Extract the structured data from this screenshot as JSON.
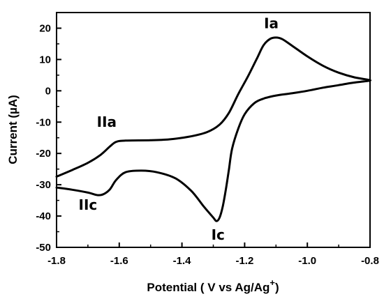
{
  "chart_data": {
    "type": "line",
    "title": "",
    "xlabel": "Potential ( V vs Ag/Ag",
    "xlabel_sup": "+",
    "xlabel_close": ")",
    "ylabel": "Current (µA)",
    "xlim": [
      -1.8,
      -0.8
    ],
    "ylim": [
      -50,
      25
    ],
    "xticks": [
      -1.8,
      -1.6,
      -1.4,
      -1.2,
      -1.0,
      -0.8
    ],
    "xtick_labels": [
      "-1.8",
      "-1.6",
      "-1.4",
      "-1.2",
      "-1.0",
      "-0.8"
    ],
    "yticks": [
      -50,
      -40,
      -30,
      -20,
      -10,
      0,
      10,
      20
    ],
    "ytick_labels": [
      "-50",
      "-40",
      "-30",
      "-20",
      "-10",
      "0",
      "10",
      "20"
    ],
    "grid": false,
    "line_color": "#000000",
    "series": [
      {
        "name": "",
        "points": [
          [
            -1.8,
            -27.4
          ],
          [
            -1.75,
            -25.3
          ],
          [
            -1.7,
            -23.0
          ],
          [
            -1.66,
            -20.5
          ],
          [
            -1.63,
            -17.8
          ],
          [
            -1.61,
            -16.3
          ],
          [
            -1.58,
            -15.9
          ],
          [
            -1.5,
            -15.8
          ],
          [
            -1.44,
            -15.5
          ],
          [
            -1.38,
            -14.7
          ],
          [
            -1.32,
            -13.2
          ],
          [
            -1.28,
            -10.8
          ],
          [
            -1.25,
            -7.0
          ],
          [
            -1.22,
            -1.0
          ],
          [
            -1.19,
            4.5
          ],
          [
            -1.16,
            10.5
          ],
          [
            -1.14,
            14.5
          ],
          [
            -1.12,
            16.5
          ],
          [
            -1.1,
            17.0
          ],
          [
            -1.08,
            16.5
          ],
          [
            -1.05,
            14.5
          ],
          [
            -1.0,
            11.0
          ],
          [
            -0.95,
            8.0
          ],
          [
            -0.9,
            5.8
          ],
          [
            -0.85,
            4.3
          ],
          [
            -0.8,
            3.4
          ],
          [
            -0.82,
            3.0
          ],
          [
            -0.86,
            2.5
          ],
          [
            -0.9,
            1.8
          ],
          [
            -0.95,
            1.0
          ],
          [
            -1.0,
            0.0
          ],
          [
            -1.05,
            -0.8
          ],
          [
            -1.1,
            -1.5
          ],
          [
            -1.14,
            -2.5
          ],
          [
            -1.17,
            -4.0
          ],
          [
            -1.2,
            -7.5
          ],
          [
            -1.22,
            -12.0
          ],
          [
            -1.24,
            -18.5
          ],
          [
            -1.25,
            -25.0
          ],
          [
            -1.26,
            -31.5
          ],
          [
            -1.27,
            -37.0
          ],
          [
            -1.28,
            -40.5
          ],
          [
            -1.29,
            -41.6
          ],
          [
            -1.3,
            -40.5
          ],
          [
            -1.33,
            -37.0
          ],
          [
            -1.37,
            -32.0
          ],
          [
            -1.42,
            -28.0
          ],
          [
            -1.48,
            -26.0
          ],
          [
            -1.53,
            -25.5
          ],
          [
            -1.58,
            -26.0
          ],
          [
            -1.61,
            -28.5
          ],
          [
            -1.63,
            -31.5
          ],
          [
            -1.65,
            -33.0
          ],
          [
            -1.67,
            -33.3
          ],
          [
            -1.7,
            -32.5
          ],
          [
            -1.75,
            -31.6
          ],
          [
            -1.8,
            -30.9
          ]
        ]
      }
    ],
    "annotations": [
      {
        "text": "Ia",
        "x": -1.115,
        "y": 20.0
      },
      {
        "text": "IIa",
        "x": -1.64,
        "y": -11.5
      },
      {
        "text": "IIc",
        "x": -1.7,
        "y": -38.0
      },
      {
        "text": "Ic",
        "x": -1.285,
        "y": -47.5
      }
    ]
  }
}
